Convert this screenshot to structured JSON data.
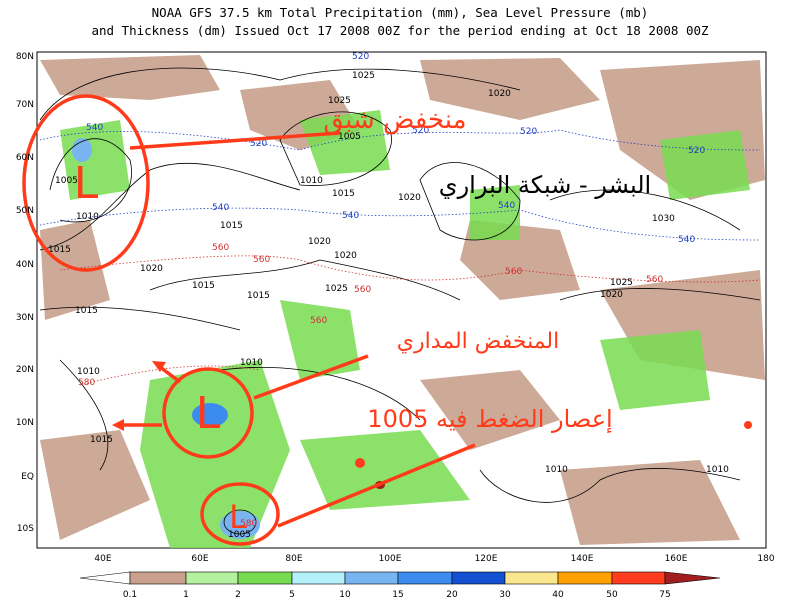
{
  "header": {
    "line1": "NOAA GFS 37.5 km Total Precipitation (mm), Sea Level Pressure (mb)",
    "line2": "and Thickness (dm)  Issued Oct 17 2008 00Z for the period ending at Oct 18 2008 00Z"
  },
  "map": {
    "lat_labels": [
      "80N",
      "70N",
      "60N",
      "50N",
      "40N",
      "30N",
      "20N",
      "10N",
      "EQ",
      "10S"
    ],
    "lon_labels": [
      "40E",
      "60E",
      "80E",
      "100E",
      "120E",
      "140E",
      "160E",
      "180"
    ],
    "isobar_labels": [
      "1025",
      "1025",
      "1020",
      "1005",
      "1010",
      "1015",
      "1020",
      "1030",
      "1020",
      "1020",
      "1025",
      "1015",
      "1015",
      "1015",
      "1010",
      "1010",
      "1015",
      "1025",
      "1020",
      "1010",
      "1010",
      "1005",
      "1005",
      "1010",
      "1015",
      "1020",
      "1015"
    ],
    "thickness_blue": [
      "540",
      "520",
      "540",
      "540",
      "520",
      "540",
      "520",
      "540",
      "520",
      "520"
    ],
    "thickness_red": [
      "560",
      "560",
      "560",
      "560",
      "560",
      "560",
      "580",
      "580"
    ]
  },
  "legend": {
    "labels": [
      "0.1",
      "1",
      "2",
      "5",
      "10",
      "15",
      "20",
      "30",
      "40",
      "50",
      "75"
    ]
  },
  "annotations": {
    "lows": [
      "L",
      "L",
      "L"
    ],
    "notes": [
      "منخفض شبق",
      "البشر - شبكة البراري",
      "المنخفض المداري",
      "إعصار الضغط فيه 1005"
    ]
  }
}
